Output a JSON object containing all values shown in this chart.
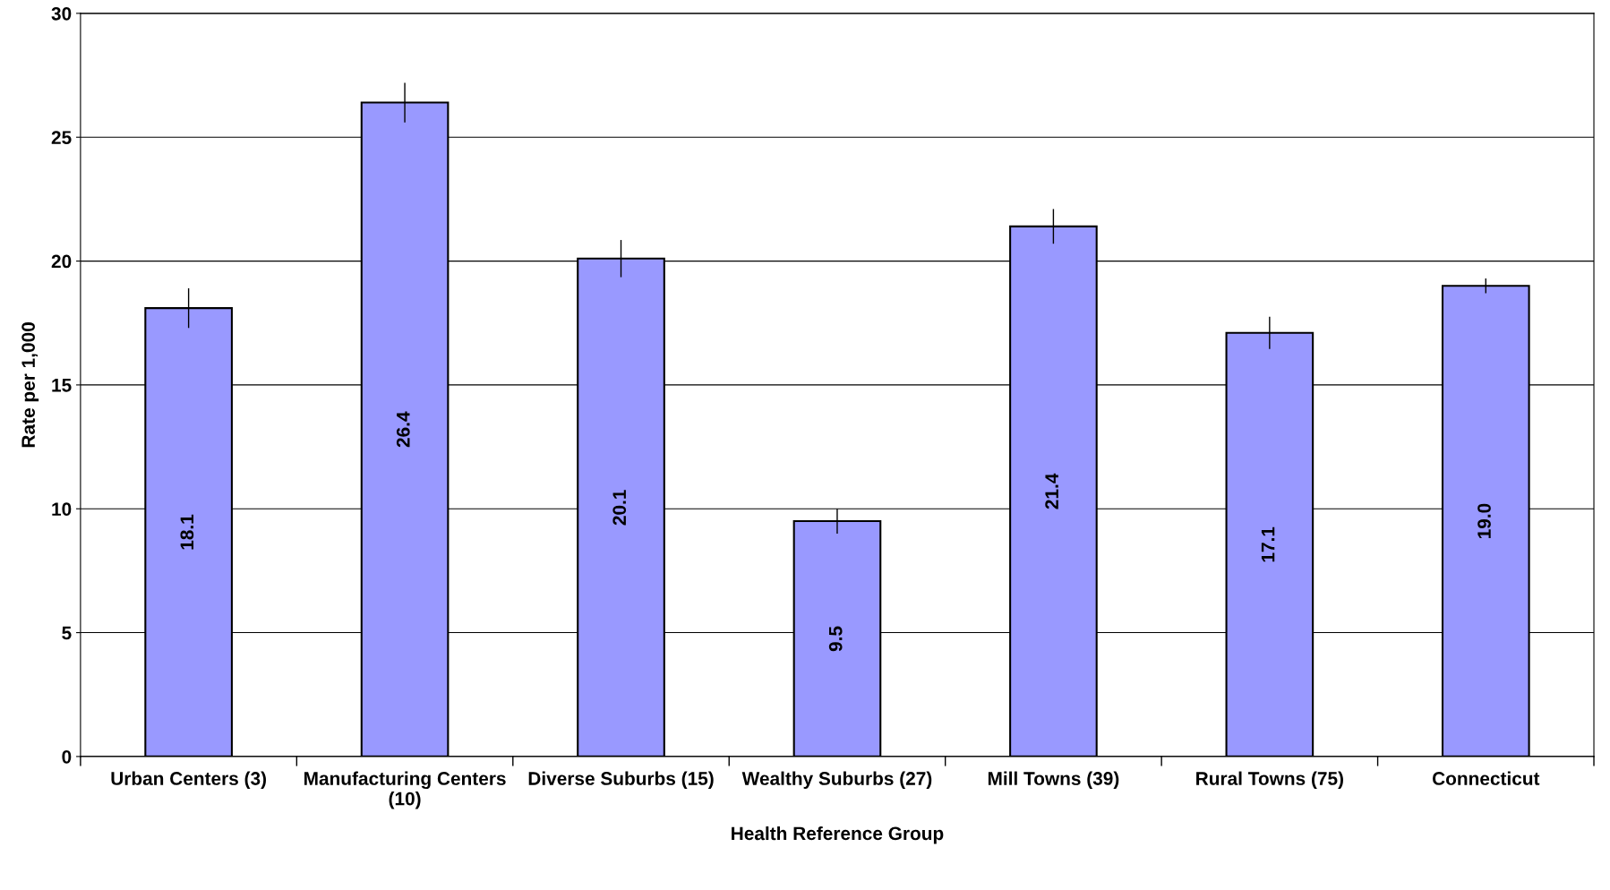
{
  "chart_data": {
    "type": "bar",
    "xlabel": "Health Reference Group",
    "ylabel": "Rate per 1,000",
    "categories": [
      "Urban Centers (3)",
      "Manufacturing Centers (10)",
      "Diverse Suburbs (15)",
      "Wealthy Suburbs (27)",
      "Mill Towns (39)",
      "Rural Towns (75)",
      "Connecticut"
    ],
    "values": [
      18.1,
      26.4,
      20.1,
      9.5,
      21.4,
      17.1,
      19.0
    ],
    "errors": [
      0.8,
      0.8,
      0.75,
      0.5,
      0.7,
      0.65,
      0.3
    ],
    "value_labels": [
      "18.1",
      "26.4",
      "20.1",
      "9.5",
      "21.4",
      "17.1",
      "19.0"
    ],
    "color": "#9999ff",
    "ylim": [
      0,
      30
    ],
    "yticks": [
      0,
      5,
      10,
      15,
      20,
      25,
      30
    ],
    "grid": "y"
  }
}
